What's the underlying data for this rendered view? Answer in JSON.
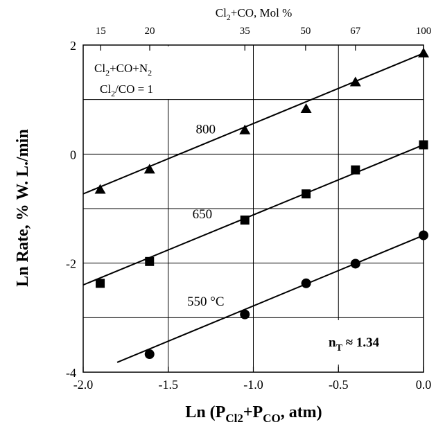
{
  "chart_data": {
    "type": "scatter",
    "title": "",
    "xlabel": "Ln (P",
    "xlabel_sub1": "Cl2",
    "xlabel_mid": "+P",
    "xlabel_sub2": "CO",
    "xlabel_tail": ", atm)",
    "ylabel": "Ln Rate, % W. L./min",
    "xlim": [
      -2.0,
      0.0
    ],
    "ylim": [
      -4,
      2
    ],
    "x_ticks": [
      -2.0,
      -1.5,
      -1.0,
      -0.5,
      0.0
    ],
    "x_tick_labels": [
      "-2.0",
      "-1.5",
      "-1.0",
      "-0.5",
      "0.0"
    ],
    "y_ticks": [
      -4,
      -2,
      0,
      2
    ],
    "y_tick_labels": [
      "-4",
      "-2",
      "0",
      "2"
    ],
    "gridlines": true,
    "top_axis": {
      "title_a": "Cl",
      "title_sub": "2",
      "title_b": "+CO, Mol %",
      "ticks": [
        {
          "label": "15",
          "x": -1.897
        },
        {
          "label": "20",
          "x": -1.609
        },
        {
          "label": "35",
          "x": -1.05
        },
        {
          "label": "50",
          "x": -0.693
        },
        {
          "label": "67",
          "x": -0.4
        },
        {
          "label": "100",
          "x": 0.0
        }
      ]
    },
    "series": [
      {
        "name": "800",
        "marker": "triangle",
        "points": [
          {
            "x": -1.9,
            "y": -0.65
          },
          {
            "x": -1.61,
            "y": -0.28
          },
          {
            "x": -1.05,
            "y": 0.44
          },
          {
            "x": -0.69,
            "y": 0.83
          },
          {
            "x": -0.4,
            "y": 1.32
          },
          {
            "x": 0.0,
            "y": 1.85
          }
        ],
        "fit": [
          [
            -2.0,
            -0.73
          ],
          [
            0.0,
            1.85
          ]
        ]
      },
      {
        "name": "650",
        "marker": "square",
        "points": [
          {
            "x": -1.9,
            "y": -2.37
          },
          {
            "x": -1.61,
            "y": -1.97
          },
          {
            "x": -1.05,
            "y": -1.21
          },
          {
            "x": -0.69,
            "y": -0.73
          },
          {
            "x": -0.4,
            "y": -0.29
          },
          {
            "x": 0.0,
            "y": 0.17
          }
        ],
        "fit": [
          [
            -2.0,
            -2.4
          ],
          [
            0.0,
            0.17
          ]
        ]
      },
      {
        "name": "550 °C",
        "marker": "circle",
        "points": [
          {
            "x": -1.61,
            "y": -3.67
          },
          {
            "x": -1.05,
            "y": -2.94
          },
          {
            "x": -0.69,
            "y": -2.37
          },
          {
            "x": -0.4,
            "y": -2.01
          },
          {
            "x": 0.0,
            "y": -1.49
          }
        ],
        "fit": [
          [
            -1.8,
            -3.82
          ],
          [
            0.0,
            -1.49
          ]
        ]
      }
    ],
    "annotations": {
      "box_line1_a": "Cl",
      "box_line1_sub": "2",
      "box_line1_b": "+CO+N",
      "box_line1_sub2": "2",
      "box_line2_a": "Cl",
      "box_line2_sub": "2",
      "box_line2_b": "/CO = 1",
      "nt_a": "n",
      "nt_sub": "T",
      "nt_b": " ≈ 1.34"
    }
  }
}
